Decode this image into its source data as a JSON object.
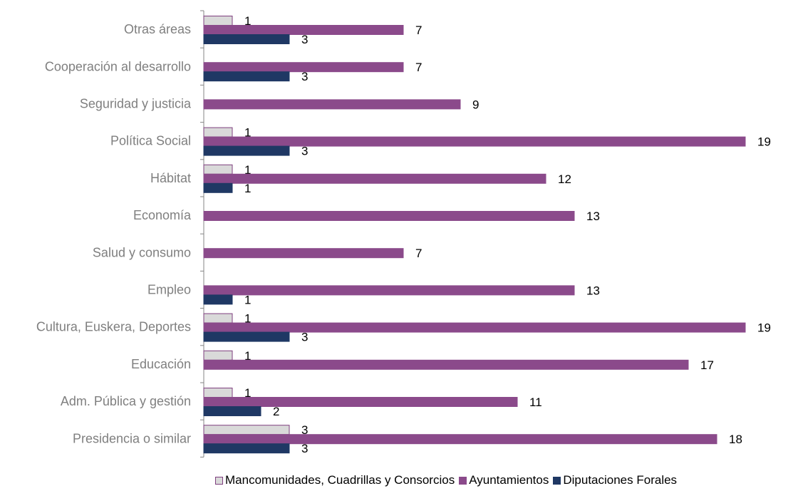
{
  "chart_data": {
    "type": "bar",
    "orientation": "horizontal",
    "categories": [
      "Otras áreas",
      "Cooperación al desarrollo",
      "Seguridad y justicia",
      "Política Social",
      "Hábitat",
      "Economía",
      "Salud y consumo",
      "Empleo",
      "Cultura, Euskera, Deportes",
      "Educación",
      "Adm. Pública y gestión",
      "Presidencia o similar"
    ],
    "series": [
      {
        "name": "Mancomunidades, Cuadrillas y Consorcios",
        "color": "#d9d9d9",
        "border": "#7f3f7f",
        "values": [
          1,
          null,
          null,
          1,
          1,
          null,
          null,
          null,
          1,
          1,
          1,
          3
        ]
      },
      {
        "name": "Ayuntamientos",
        "color": "#8b4a8b",
        "border": "#8b4a8b",
        "values": [
          7,
          7,
          9,
          19,
          12,
          13,
          7,
          13,
          19,
          17,
          11,
          18
        ]
      },
      {
        "name": "Diputaciones Forales",
        "color": "#1f3864",
        "border": "#1f3864",
        "values": [
          3,
          3,
          null,
          3,
          1,
          null,
          null,
          1,
          3,
          null,
          2,
          3
        ]
      }
    ],
    "xlim": [
      0,
      20
    ],
    "grid": false,
    "legend_position": "bottom",
    "data_labels": true
  }
}
